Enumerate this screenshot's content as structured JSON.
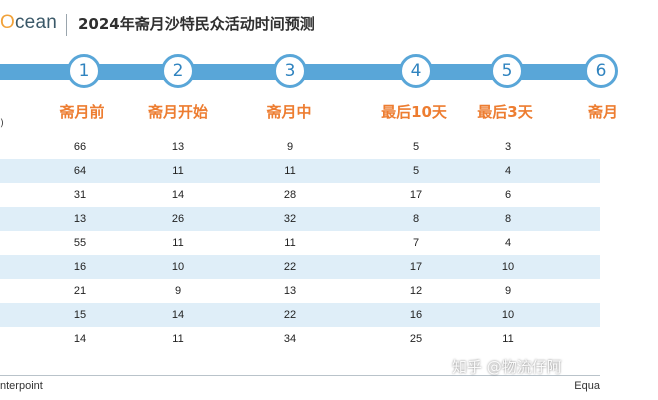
{
  "header": {
    "logo_prefix": "O",
    "logo_suffix": "cean",
    "title": "2024年斋月沙特民众活动时间预测"
  },
  "steps": [
    "1",
    "2",
    "3",
    "4",
    "5",
    "6"
  ],
  "stages": [
    "斋月前",
    "斋月开始",
    "斋月中",
    "最后10天",
    "最后3天",
    "斋月"
  ],
  "unit_label": ")",
  "table_rows": [
    [
      "66",
      "13",
      "9",
      "5",
      "3"
    ],
    [
      "64",
      "11",
      "11",
      "5",
      "4"
    ],
    [
      "31",
      "14",
      "28",
      "17",
      "6"
    ],
    [
      "13",
      "26",
      "32",
      "8",
      "8"
    ],
    [
      "55",
      "11",
      "11",
      "7",
      "4"
    ],
    [
      "16",
      "10",
      "22",
      "17",
      "10"
    ],
    [
      "21",
      "9",
      "13",
      "12",
      "9"
    ],
    [
      "15",
      "14",
      "22",
      "16",
      "10"
    ],
    [
      "14",
      "11",
      "34",
      "25",
      "11"
    ]
  ],
  "footer": {
    "source": "nterpoint",
    "right": "Equa"
  },
  "watermark": "知乎 @物流仔阿",
  "colors": {
    "accent_blue": "#59a6d8",
    "stage_orange": "#ed7d31",
    "row_stripe": "#dfeef8"
  }
}
